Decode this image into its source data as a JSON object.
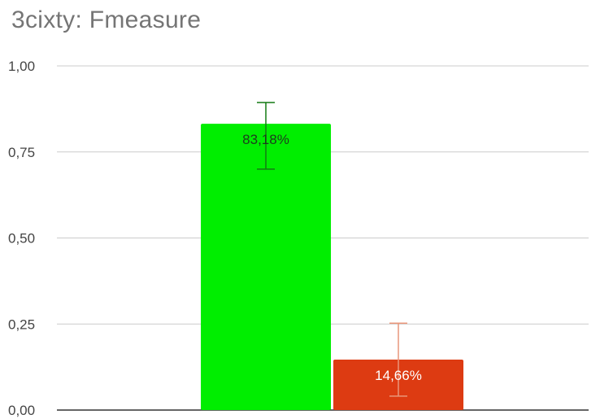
{
  "chart_data": {
    "type": "bar",
    "title": "3cixty: Fmeasure",
    "categories": [
      "",
      ""
    ],
    "values": [
      0.8318,
      0.1466
    ],
    "data_labels": [
      "83,18%",
      "14,66%"
    ],
    "error_bars": [
      {
        "low": 0.7,
        "high": 0.8935
      },
      {
        "low": 0.0405,
        "high": 0.2525
      }
    ],
    "ylim": [
      0,
      1
    ],
    "yticks": [
      {
        "value": 0,
        "label": "0,00"
      },
      {
        "value": 0.25,
        "label": "0,25"
      },
      {
        "value": 0.5,
        "label": "0,50"
      },
      {
        "value": 0.75,
        "label": "0,75"
      },
      {
        "value": 1,
        "label": "1,00"
      }
    ],
    "grid": true,
    "legend": "none",
    "colors": {
      "bars": [
        "#00ee00",
        "#dd3b12"
      ],
      "error_bars": [
        "#137a13",
        "#e9967a"
      ],
      "data_labels": [
        "#1e3b1e",
        "#ffffff"
      ],
      "grid": "#cccccc",
      "baseline": "#333333"
    }
  }
}
